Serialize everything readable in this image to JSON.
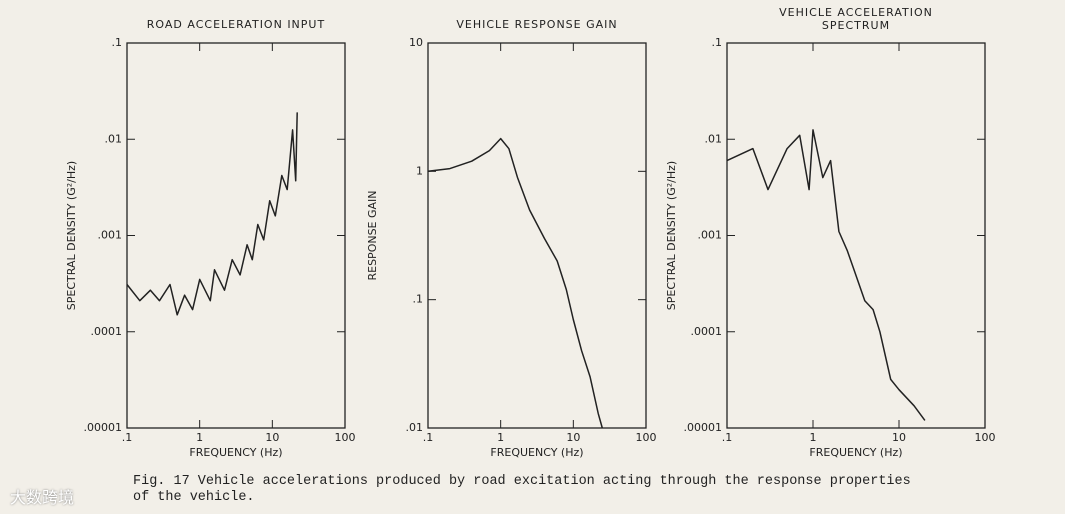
{
  "chart_data": [
    {
      "type": "line",
      "title": "ROAD ACCELERATION INPUT",
      "x_label": "FREQUENCY (Hz)",
      "y_label": "SPECTRAL DENSITY (G²/Hz)",
      "log_x": true,
      "log_y": true,
      "color": "#222",
      "x": [
        0.1,
        0.15,
        0.21,
        0.28,
        0.39,
        0.49,
        0.62,
        0.8,
        1,
        1.4,
        1.6,
        2.2,
        2.8,
        3.6,
        4.5,
        5.3,
        6.3,
        7.6,
        9.2,
        11,
        13.5,
        16,
        19,
        21,
        22
      ],
      "values": [
        0.00031,
        0.00021,
        0.00027,
        0.00021,
        0.00031,
        0.00015,
        0.00024,
        0.00017,
        0.00035,
        0.00021,
        0.00044,
        0.00027,
        0.00056,
        0.00039,
        0.0008,
        0.00056,
        0.0013,
        0.0009,
        0.0023,
        0.0016,
        0.0042,
        0.003,
        0.0125,
        0.0037,
        0.019
      ],
      "xlim": [
        0.1,
        100
      ],
      "xticks": [
        {
          "value": 0.1,
          "label": ".1"
        },
        1,
        10,
        100
      ],
      "ylim": [
        1e-05,
        0.1
      ],
      "yticks": [
        {
          "value": 1e-05,
          "label": ".00001"
        },
        {
          "value": 0.0001,
          "label": ".0001"
        },
        {
          "value": 0.001,
          "label": ".001"
        },
        {
          "value": 0.01,
          "label": ".01"
        },
        {
          "value": 0.1,
          "label": ".1"
        }
      ]
    },
    {
      "type": "line",
      "title": "VEHICLE RESPONSE GAIN",
      "x_label": "FREQUENCY (Hz)",
      "y_label": "RESPONSE GAIN",
      "log_x": true,
      "log_y": true,
      "color": "#222",
      "x": [
        0.1,
        0.2,
        0.4,
        0.7,
        1,
        1.3,
        1.7,
        2.5,
        4,
        6,
        8,
        10,
        13,
        17,
        22,
        25
      ],
      "values": [
        1,
        1.05,
        1.2,
        1.45,
        1.8,
        1.5,
        0.9,
        0.5,
        0.3,
        0.2,
        0.12,
        0.07,
        0.04,
        0.025,
        0.013,
        0.01
      ],
      "xlim": [
        0.1,
        100
      ],
      "xticks": [
        {
          "value": 0.1,
          "label": ".1"
        },
        1,
        10,
        100
      ],
      "ylim": [
        0.01,
        10
      ],
      "yticks": [
        {
          "value": 0.01,
          "label": ".01"
        },
        {
          "value": 0.1,
          "label": ".1"
        },
        1,
        10
      ]
    },
    {
      "type": "line",
      "title": "VEHICLE ACCELERATION SPECTRUM",
      "x_label": "FREQUENCY (Hz)",
      "y_label": "SPECTRAL DENSITY (G²/Hz)",
      "log_x": true,
      "log_y": true,
      "color": "#222",
      "x": [
        0.1,
        0.2,
        0.3,
        0.5,
        0.7,
        0.9,
        1,
        1.3,
        1.6,
        2,
        2.5,
        3,
        4,
        5,
        6,
        8,
        10,
        15,
        20
      ],
      "values": [
        0.006,
        0.008,
        0.003,
        0.008,
        0.011,
        0.003,
        0.0125,
        0.004,
        0.006,
        0.0011,
        0.0007,
        0.00044,
        0.00021,
        0.00017,
        0.0001,
        3.2e-05,
        2.5e-05,
        1.7e-05,
        1.2e-05
      ],
      "xlim": [
        0.1,
        100
      ],
      "xticks": [
        {
          "value": 0.1,
          "label": ".1"
        },
        1,
        10,
        100
      ],
      "ylim": [
        1e-05,
        0.1
      ],
      "yticks": [
        {
          "value": 1e-05,
          "label": ".00001"
        },
        {
          "value": 0.0001,
          "label": ".0001"
        },
        {
          "value": 0.001,
          "label": ".001"
        },
        {
          "value": 0.01,
          "label": ".01"
        },
        {
          "value": 0.1,
          "label": ".1"
        }
      ]
    }
  ],
  "caption": "Fig. 17  Vehicle accelerations produced by road excitation acting through the response properties of the vehicle.",
  "watermark": "大数跨境"
}
